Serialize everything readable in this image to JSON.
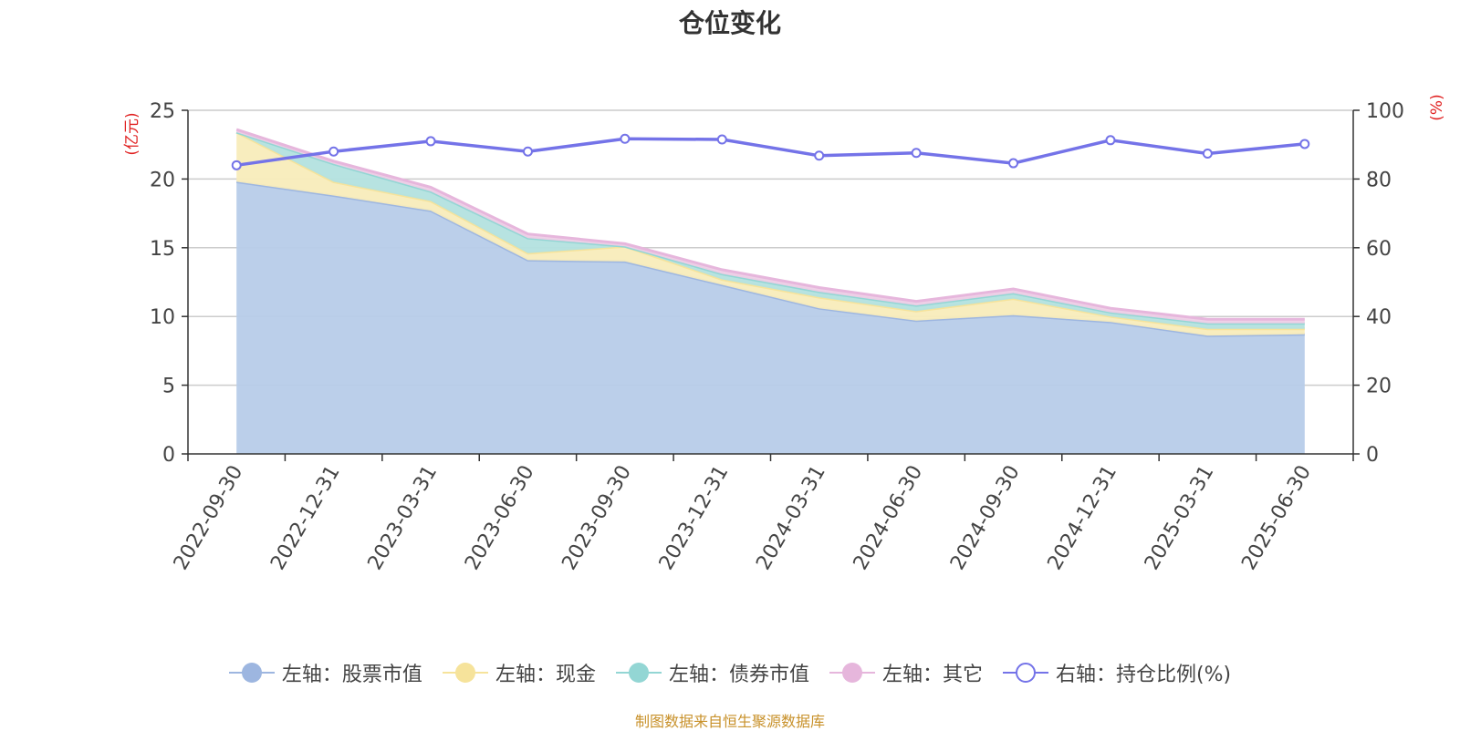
{
  "chart_data": {
    "type": "area",
    "title": "仓位变化",
    "left_axis_unit": "(亿元)",
    "right_axis_unit": "(%)",
    "categories": [
      "2022-09-30",
      "2022-12-31",
      "2023-03-31",
      "2023-06-30",
      "2023-09-30",
      "2023-12-31",
      "2024-03-31",
      "2024-06-30",
      "2024-09-30",
      "2024-12-31",
      "2025-03-31",
      "2025-06-30"
    ],
    "y_left": {
      "min": 0,
      "max": 25,
      "ticks": [
        0,
        5,
        10,
        15,
        20,
        25
      ]
    },
    "y_right": {
      "min": 0,
      "max": 100,
      "ticks": [
        0,
        20,
        40,
        60,
        80,
        100
      ]
    },
    "stacked_series": [
      {
        "name": "左轴：股票市值",
        "color": "#9db6e0",
        "fill": "#b7cce9",
        "values": [
          19.8,
          18.8,
          17.7,
          14.1,
          14.0,
          12.3,
          10.6,
          9.7,
          10.1,
          9.6,
          8.6,
          8.7
        ]
      },
      {
        "name": "左轴：现金",
        "color": "#f6e39b",
        "fill": "#f8ecbb",
        "values": [
          3.6,
          1.0,
          0.7,
          0.5,
          1.1,
          0.4,
          0.8,
          0.7,
          1.2,
          0.4,
          0.5,
          0.4
        ]
      },
      {
        "name": "左轴：债券市值",
        "color": "#93d6d4",
        "fill": "#b3e2df",
        "values": [
          0.0,
          1.3,
          0.7,
          1.1,
          0.0,
          0.4,
          0.4,
          0.4,
          0.4,
          0.3,
          0.4,
          0.4
        ]
      },
      {
        "name": "左轴：其它",
        "color": "#e6b6dc",
        "fill": "#eecde6",
        "values": [
          0.2,
          0.2,
          0.3,
          0.3,
          0.2,
          0.3,
          0.3,
          0.3,
          0.3,
          0.3,
          0.3,
          0.3
        ]
      }
    ],
    "line_series": {
      "name": "右轴：持仓比例(%)",
      "color": "#7473e8",
      "values": [
        84.0,
        88.0,
        91.0,
        88.0,
        91.7,
        91.5,
        86.8,
        87.6,
        84.6,
        91.3,
        87.4,
        90.2
      ]
    },
    "grid": true,
    "legend_position": "bottom"
  },
  "source_text": "制图数据来自恒生聚源数据库"
}
